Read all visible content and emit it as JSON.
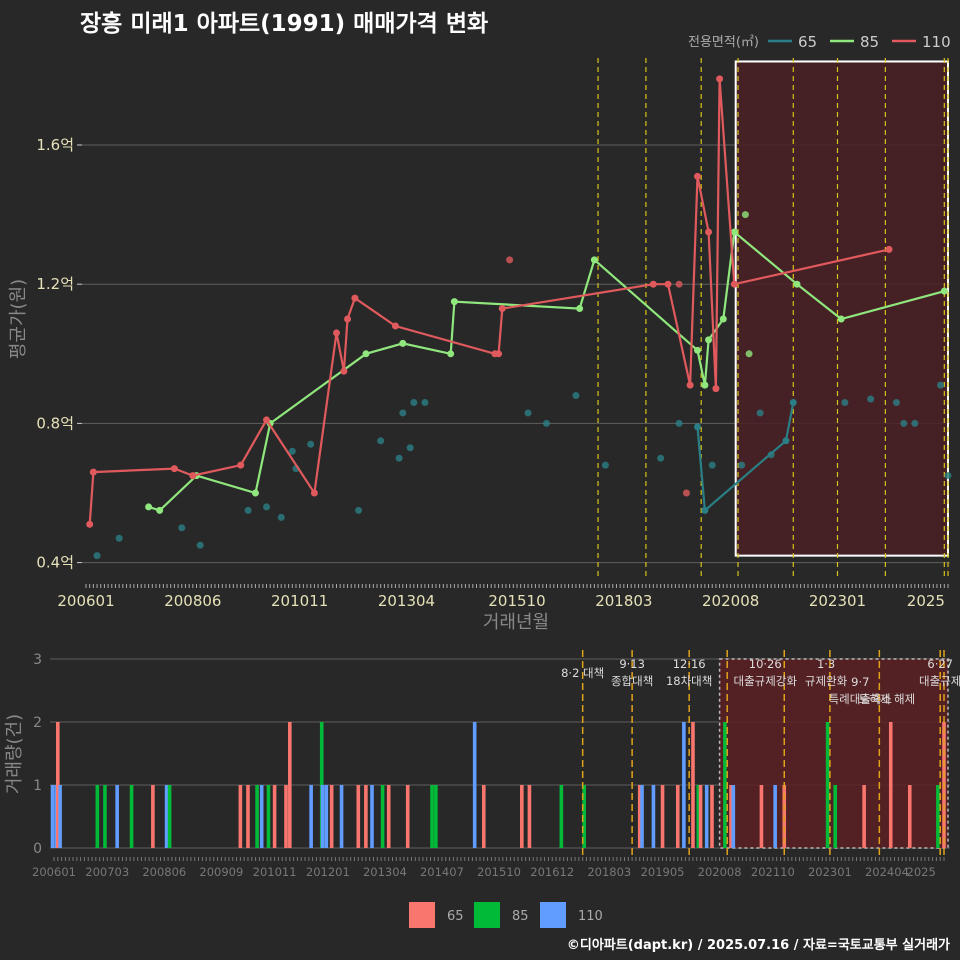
{
  "title": "장흥 미래1 아파트(1991) 매매가격 변화",
  "credit": "©디아파트(dapt.kr) / 2025.07.16 / 자료=국토교통부 실거래가",
  "colors": {
    "bg": "#282828",
    "grid": "#5e5e5e",
    "tick_text_top": "#e6e0b8",
    "tick_text_bottom": "#777777",
    "axis_title": "#888888",
    "policy_line": "#d8c318",
    "highlight_fill": "#4a2024",
    "s65": "#2a7f86",
    "s85": "#90e77d",
    "s110": "#e05a5d",
    "b65": "#f8766d",
    "b85": "#00ba38",
    "b110": "#619cff"
  },
  "chart_data": [
    {
      "type": "line",
      "name": "price",
      "ylabel": "평균가(원)",
      "xlabel": "거래년월",
      "legend_title": "전용면적(㎡)",
      "legend": [
        "65",
        "85",
        "110"
      ],
      "ylim": [
        0.35,
        1.85
      ],
      "y_ticks": [
        0.4,
        0.8,
        1.2,
        1.6
      ],
      "y_tick_labels": [
        "0.4억",
        "0.8억",
        "1.2억",
        "1.6억"
      ],
      "x_ticks": [
        "200601",
        "200806",
        "201011",
        "201304",
        "201510",
        "201803",
        "202008",
        "202301",
        "2025"
      ],
      "highlight": {
        "from": "202011",
        "to": "202507",
        "ylim": [
          0.42,
          1.84
        ]
      },
      "policy_dates": [
        "201708",
        "201809",
        "201912",
        "202010",
        "202201",
        "202301",
        "202402",
        "202506",
        "202507"
      ],
      "series": [
        {
          "name": "65",
          "connected": [
            [
              "201911",
              0.79
            ],
            [
              "202001",
              0.55
            ],
            [
              "202111",
              0.75
            ],
            [
              "202201",
              0.86
            ]
          ],
          "points": [
            [
              "200604",
              0.42
            ],
            [
              "200610",
              0.47
            ],
            [
              "200803",
              0.5
            ],
            [
              "200808",
              0.45
            ],
            [
              "200909",
              0.55
            ],
            [
              "201002",
              0.56
            ],
            [
              "201006",
              0.53
            ],
            [
              "201009",
              0.72
            ],
            [
              "201010",
              0.67
            ],
            [
              "201102",
              0.74
            ],
            [
              "201203",
              0.55
            ],
            [
              "201209",
              0.75
            ],
            [
              "201302",
              0.7
            ],
            [
              "201303",
              0.83
            ],
            [
              "201305",
              0.73
            ],
            [
              "201306",
              0.86
            ],
            [
              "201309",
              0.86
            ],
            [
              "201601",
              0.83
            ],
            [
              "201606",
              0.8
            ],
            [
              "201702",
              0.88
            ],
            [
              "201710",
              0.68
            ],
            [
              "201901",
              0.7
            ],
            [
              "201906",
              0.8
            ],
            [
              "202003",
              0.68
            ],
            [
              "202011",
              0.68
            ],
            [
              "202104",
              0.83
            ],
            [
              "202107",
              0.71
            ],
            [
              "202303",
              0.86
            ],
            [
              "202310",
              0.87
            ],
            [
              "202405",
              0.86
            ],
            [
              "202407",
              0.8
            ],
            [
              "202410",
              0.8
            ],
            [
              "202505",
              0.91
            ],
            [
              "202507",
              0.65
            ]
          ]
        },
        {
          "name": "85",
          "connected": [
            [
              "200706",
              0.56
            ],
            [
              "200709",
              0.55
            ],
            [
              "200807",
              0.65
            ],
            [
              "200911",
              0.6
            ],
            [
              "201003",
              0.8
            ],
            [
              "201205",
              1.0
            ],
            [
              "201303",
              1.03
            ],
            [
              "201404",
              1.0
            ],
            [
              "201405",
              1.15
            ],
            [
              "201703",
              1.13
            ],
            [
              "201707",
              1.27
            ],
            [
              "201911",
              1.01
            ],
            [
              "202001",
              0.91
            ],
            [
              "202002",
              1.04
            ],
            [
              "202006",
              1.1
            ],
            [
              "202009",
              1.35
            ],
            [
              "202202",
              1.2
            ],
            [
              "202302",
              1.1
            ],
            [
              "202506",
              1.18
            ]
          ],
          "points": [
            [
              "202012",
              1.4
            ],
            [
              "202101",
              1.0
            ]
          ]
        },
        {
          "name": "110",
          "connected": [
            [
              "200602",
              0.51
            ],
            [
              "200603",
              0.66
            ],
            [
              "200801",
              0.67
            ],
            [
              "200806",
              0.65
            ],
            [
              "200907",
              0.68
            ],
            [
              "201002",
              0.81
            ],
            [
              "201103",
              0.6
            ],
            [
              "201109",
              1.06
            ],
            [
              "201111",
              0.95
            ],
            [
              "201112",
              1.1
            ],
            [
              "201202",
              1.16
            ],
            [
              "201301",
              1.08
            ],
            [
              "201504",
              1.0
            ],
            [
              "201505",
              1.0
            ],
            [
              "201506",
              1.13
            ],
            [
              "201811",
              1.2
            ],
            [
              "201903",
              1.2
            ],
            [
              "201909",
              0.91
            ],
            [
              "201911",
              1.51
            ],
            [
              "202002",
              1.35
            ],
            [
              "202004",
              0.9
            ],
            [
              "202005",
              1.79
            ],
            [
              "202009",
              1.2
            ],
            [
              "202403",
              1.3
            ]
          ],
          "points": [
            [
              "201508",
              1.27
            ],
            [
              "201906",
              1.2
            ],
            [
              "201908",
              0.6
            ]
          ]
        }
      ]
    },
    {
      "type": "bar",
      "name": "volume",
      "ylabel": "거래량(건)",
      "ylim": [
        0,
        3
      ],
      "y_ticks": [
        0,
        1,
        2,
        3
      ],
      "x_ticks": [
        "200601",
        "200703",
        "200806",
        "200909",
        "201011",
        "201201",
        "201304",
        "201407",
        "201510",
        "201612",
        "201803",
        "201905",
        "202008",
        "202110",
        "202301",
        "202404",
        "2025"
      ],
      "legend": [
        "65",
        "85",
        "110"
      ],
      "highlight": {
        "from": "202008",
        "to": "202507",
        "ylim": [
          0,
          3
        ]
      },
      "policy_dates": [
        "201708",
        "201809",
        "201912",
        "202010",
        "202201",
        "202301",
        "202402",
        "202506",
        "202507"
      ],
      "annotations": [
        {
          "date": "201708",
          "lines": [
            "8·2 대책"
          ]
        },
        {
          "date": "201809",
          "lines": [
            "9·13",
            "종합대책"
          ]
        },
        {
          "date": "201912",
          "lines": [
            "12·16",
            "18차대책"
          ]
        },
        {
          "date": "202108",
          "lines": [
            "10·26",
            "대출규제강화"
          ]
        },
        {
          "date": "202212",
          "lines": [
            "1·3",
            "규제완화"
          ]
        },
        {
          "date": "202309",
          "lines": [
            "9·7",
            "특례대출축소"
          ]
        },
        {
          "date": "202404",
          "lines": [
            "토허제 해제"
          ]
        },
        {
          "date": "202506",
          "lines": [
            "6·27",
            "대출규제"
          ]
        }
      ],
      "bars": [
        [
          "200601",
          "110",
          1
        ],
        [
          "200602",
          "110",
          1
        ],
        [
          "200602",
          "65",
          2
        ],
        [
          "200603",
          "110",
          1
        ],
        [
          "200612",
          "85",
          1
        ],
        [
          "200702",
          "85",
          1
        ],
        [
          "200706",
          "110",
          1
        ],
        [
          "200709",
          "85",
          1
        ],
        [
          "200803",
          "65",
          1
        ],
        [
          "200807",
          "110",
          1
        ],
        [
          "200807",
          "85",
          1
        ],
        [
          "201002",
          "65",
          1
        ],
        [
          "201004",
          "65",
          1
        ],
        [
          "201006",
          "85",
          1
        ],
        [
          "201008",
          "110",
          1
        ],
        [
          "201009",
          "85",
          1
        ],
        [
          "201011",
          "65",
          1
        ],
        [
          "201102",
          "65",
          1
        ],
        [
          "201103",
          "65",
          2
        ],
        [
          "201109",
          "110",
          1
        ],
        [
          "201111",
          "85",
          2
        ],
        [
          "201112",
          "110",
          1
        ],
        [
          "201201",
          "110",
          1
        ],
        [
          "201202",
          "65",
          1
        ],
        [
          "201205",
          "110",
          1
        ],
        [
          "201209",
          "65",
          1
        ],
        [
          "201211",
          "65",
          1
        ],
        [
          "201301",
          "110",
          1
        ],
        [
          "201303",
          "85",
          1
        ],
        [
          "201305",
          "65",
          1
        ],
        [
          "201310",
          "65",
          1
        ],
        [
          "201404",
          "85",
          1
        ],
        [
          "201405",
          "85",
          1
        ],
        [
          "201504",
          "110",
          2
        ],
        [
          "201506",
          "65",
          1
        ],
        [
          "201604",
          "65",
          1
        ],
        [
          "201606",
          "65",
          1
        ],
        [
          "201702",
          "85",
          1
        ],
        [
          "201708",
          "85",
          1
        ],
        [
          "201811",
          "65",
          1
        ],
        [
          "201812",
          "110",
          1
        ],
        [
          "201903",
          "110",
          1
        ],
        [
          "201905",
          "65",
          1
        ],
        [
          "201909",
          "65",
          1
        ],
        [
          "201911",
          "110",
          2
        ],
        [
          "202001",
          "65",
          2
        ],
        [
          "202002",
          "85",
          1
        ],
        [
          "202003",
          "65",
          1
        ],
        [
          "202005",
          "110",
          1
        ],
        [
          "202006",
          "65",
          1
        ],
        [
          "202009",
          "85",
          2
        ],
        [
          "202011",
          "65",
          1
        ],
        [
          "202012",
          "110",
          1
        ],
        [
          "202107",
          "65",
          1
        ],
        [
          "202111",
          "110",
          1
        ],
        [
          "202201",
          "65",
          1
        ],
        [
          "202212",
          "85",
          2
        ],
        [
          "202302",
          "85",
          1
        ],
        [
          "202310",
          "65",
          1
        ],
        [
          "202405",
          "65",
          2
        ],
        [
          "202410",
          "65",
          1
        ],
        [
          "202505",
          "85",
          1
        ],
        [
          "202507",
          "65",
          2
        ]
      ]
    }
  ]
}
